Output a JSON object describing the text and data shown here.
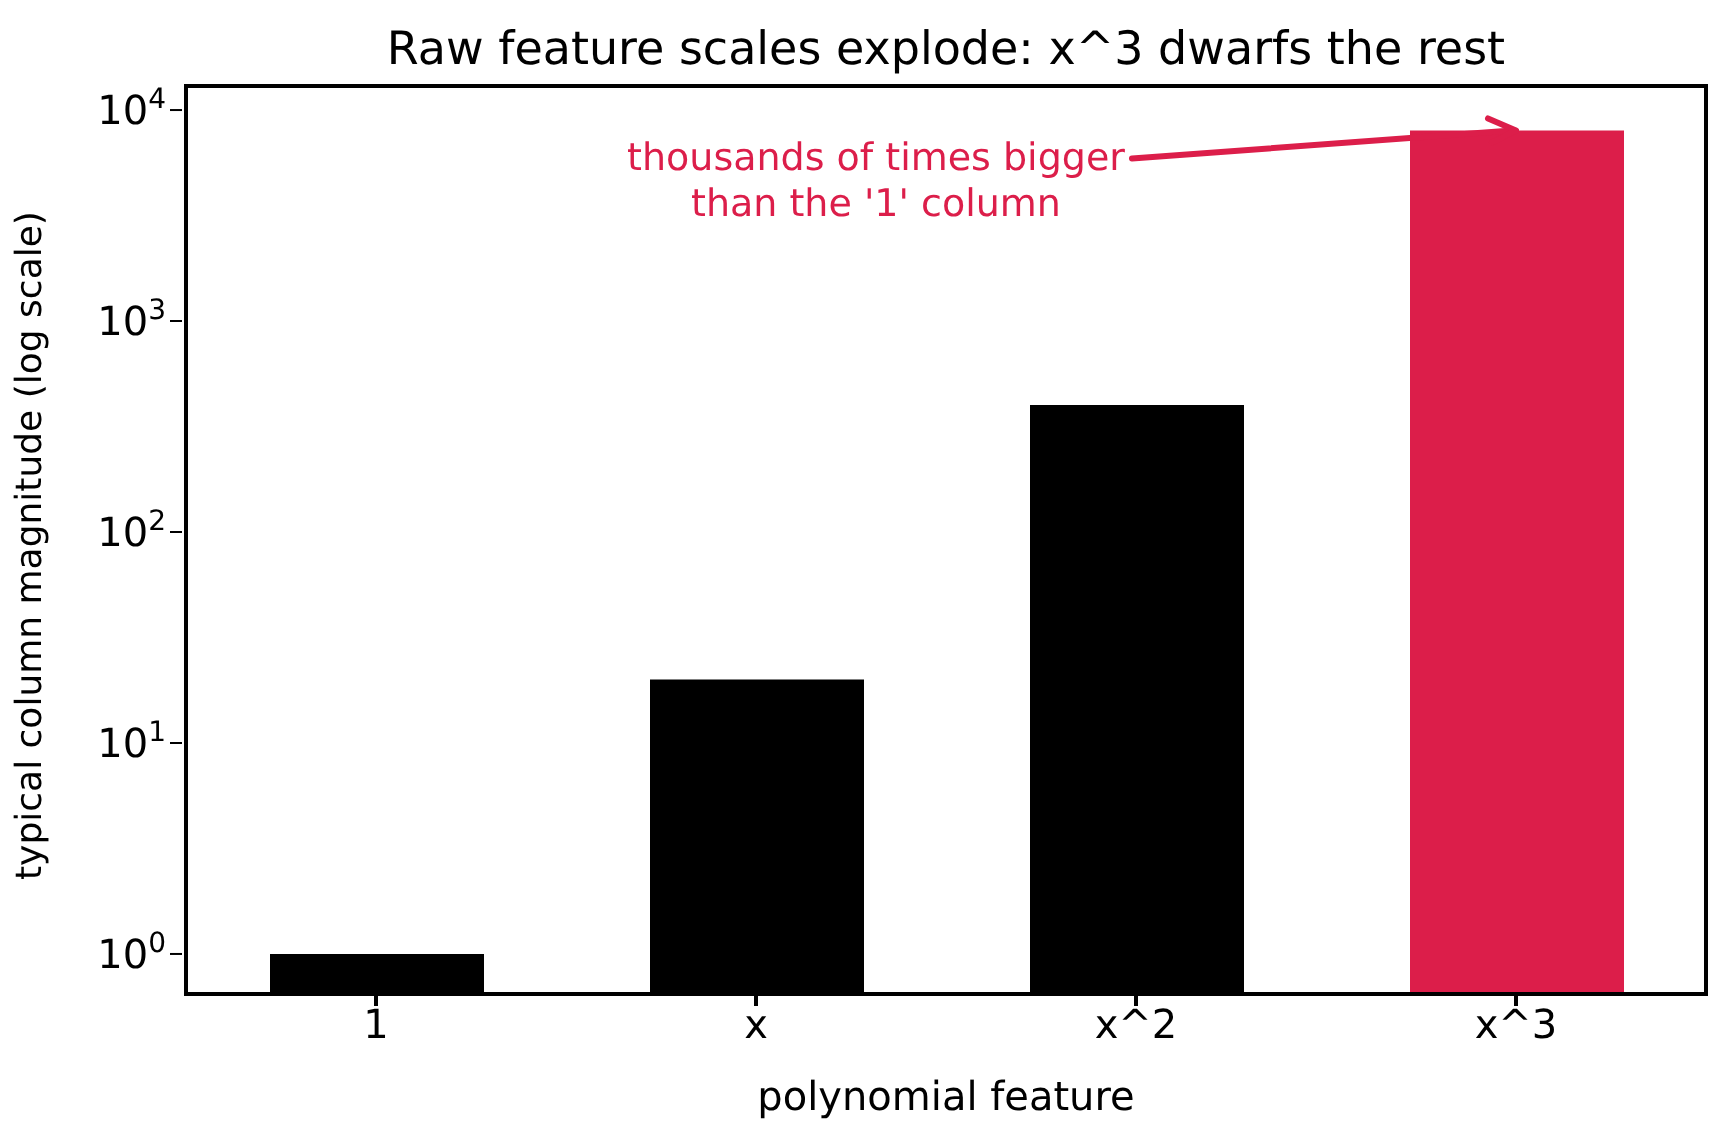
{
  "chart_data": {
    "type": "bar",
    "title": "Raw feature scales explode: x^3 dwarfs the rest",
    "xlabel": "polynomial feature",
    "ylabel": "typical column magnitude (log scale)",
    "categories": [
      "1",
      "x",
      "x^2",
      "x^3"
    ],
    "values": [
      1,
      20,
      400,
      8000
    ],
    "colors": [
      "#000000",
      "#000000",
      "#000000",
      "#dc1e4a"
    ],
    "log": "y",
    "ylim": [
      0.646,
      13000
    ],
    "yticks": [
      {
        "value": 1,
        "label": "10$^{0}$"
      },
      {
        "value": 10,
        "label": "10$^{1}$"
      },
      {
        "value": 100,
        "label": "10$^{2}$"
      },
      {
        "value": 1000,
        "label": "10$^{3}$"
      },
      {
        "value": 10000,
        "label": "10$^{4}$"
      }
    ],
    "annotations": [
      {
        "text": "thousands of times bigger\nthan the '1' column",
        "x": "x^3",
        "y": 8000
      }
    ],
    "grid": false,
    "legend": false
  }
}
